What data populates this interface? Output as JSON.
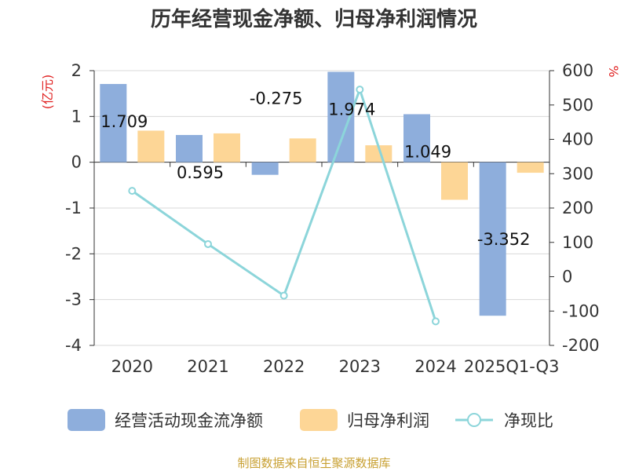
{
  "title": "历年经营现金净额、归母净利润情况",
  "source": "制图数据来自恒生聚源数据库",
  "colors": {
    "cash": "#8eaedc",
    "profit": "#fdd696",
    "ratio": "#8cd5da",
    "grid": "#d9d9d9",
    "axis": "#333333",
    "unit": "#e02020"
  },
  "chart_data": {
    "type": "bar",
    "title": "历年经营现金净额、归母净利润情况",
    "categories": [
      "2020",
      "2021",
      "2022",
      "2023",
      "2024",
      "2025Q1-Q3"
    ],
    "y_left": {
      "label": "(亿元)",
      "min": -4,
      "max": 2,
      "ticks": [
        2,
        1,
        0,
        -1,
        -2,
        -3,
        -4
      ]
    },
    "y_right": {
      "label": "%",
      "min": -200,
      "max": 600,
      "ticks": [
        600,
        500,
        400,
        300,
        200,
        100,
        0,
        -100,
        -200
      ]
    },
    "series": [
      {
        "name": "经营活动现金流净额",
        "type": "bar",
        "axis": "left",
        "values": [
          1.709,
          0.595,
          -0.275,
          1.974,
          1.049,
          -3.352
        ],
        "labels": [
          "1.709",
          "0.595",
          "-0.275",
          "1.974",
          "1.049",
          "-3.352"
        ]
      },
      {
        "name": "归母净利润",
        "type": "bar",
        "axis": "left",
        "values": [
          0.69,
          0.63,
          0.52,
          0.37,
          -0.82,
          -0.23
        ]
      },
      {
        "name": "净现比",
        "type": "line",
        "axis": "right",
        "values": [
          250,
          95,
          -55,
          545,
          -130,
          null
        ]
      }
    ],
    "legend_position": "bottom",
    "grid": true
  }
}
